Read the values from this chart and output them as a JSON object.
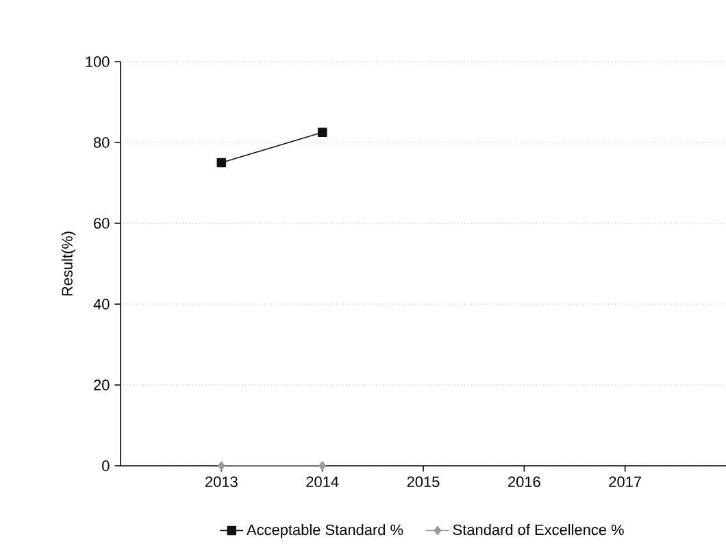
{
  "chart_data": {
    "type": "line",
    "ylabel": "Result(%)",
    "categories": [
      "2013",
      "2014",
      "2015",
      "2016",
      "2017"
    ],
    "series": [
      {
        "name": "Acceptable Standard %",
        "color": "#111111",
        "marker": "square",
        "values": [
          75,
          82.5,
          null,
          null,
          null
        ]
      },
      {
        "name": "Standard of Excellence %",
        "color": "#9a9a9a",
        "marker": "diamond",
        "values": [
          0,
          0,
          null,
          null,
          null
        ]
      }
    ],
    "ylim": [
      0,
      100
    ],
    "yticks": [
      0,
      20,
      40,
      60,
      80,
      100
    ],
    "grid": "y",
    "legend": "bottom",
    "line_style": "solid"
  }
}
